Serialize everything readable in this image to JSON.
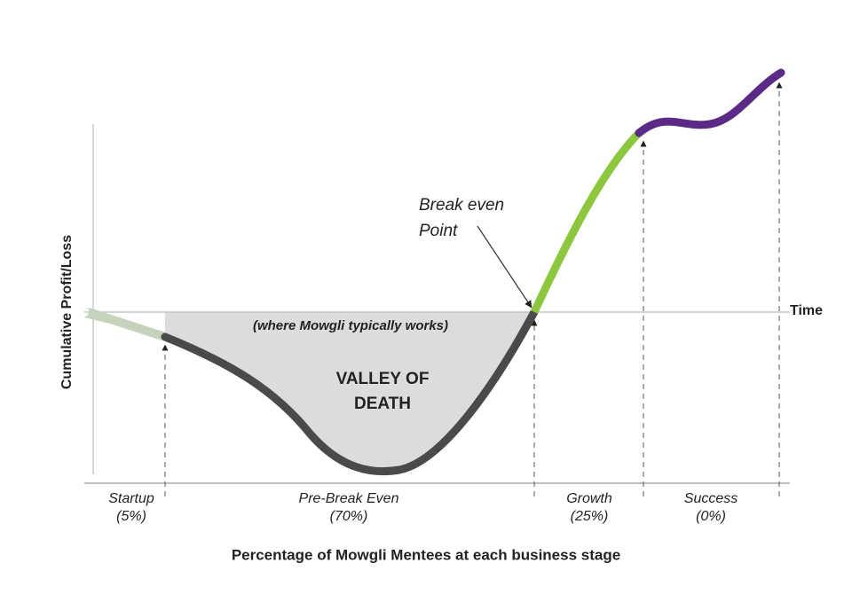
{
  "axes": {
    "y_label": "Cumulative Profit/Loss",
    "x_label": "Time"
  },
  "annotations": {
    "break_even": [
      "Break even",
      "Point"
    ],
    "valley_note": "(where Mowgli typically works)",
    "valley_title": [
      "VALLEY OF",
      "DEATH"
    ]
  },
  "stages": [
    {
      "name": "Startup",
      "share": "(5%)"
    },
    {
      "name": "Pre-Break Even",
      "share": "(70%)"
    },
    {
      "name": "Growth",
      "share": "(25%)"
    },
    {
      "name": "Success",
      "share": "(0%)"
    }
  ],
  "caption": "Percentage of Mowgli Mentees at each business stage"
}
